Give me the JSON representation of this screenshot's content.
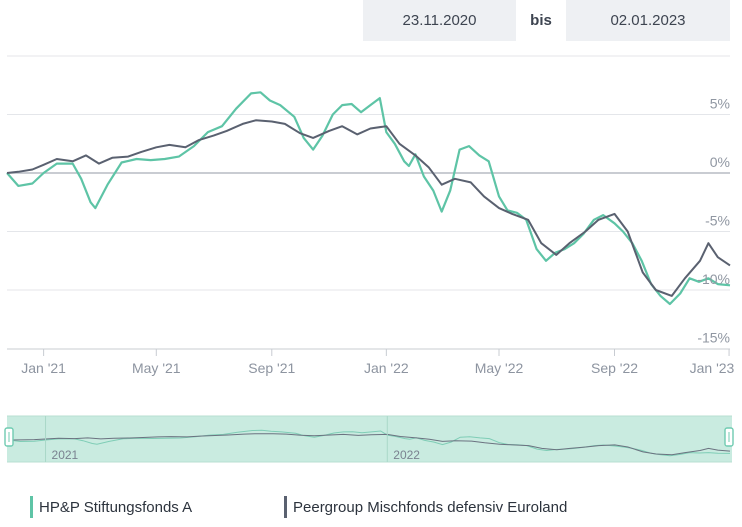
{
  "date_range": {
    "from": "23.11.2020",
    "separator": "bis",
    "to": "02.01.2023"
  },
  "colors": {
    "fund": "#5ec4a6",
    "peer": "#5a6170",
    "navigator_fill": "#c9ebe0",
    "navigator_border": "#6fcbb1"
  },
  "chart_data": {
    "type": "line",
    "title": "",
    "xlabel": "",
    "ylabel": "",
    "x_ticks": [
      "Jan '21",
      "May '21",
      "Sep '21",
      "Jan '22",
      "May '22",
      "Sep '22",
      "Jan '23"
    ],
    "y_ticks": [
      "5%",
      "0%",
      "-5%",
      "-10%",
      "-15%"
    ],
    "ylim": [
      -15,
      10
    ],
    "xlim": [
      "2020-11-23",
      "2023-01-02"
    ],
    "grid": true,
    "legend": "bottom",
    "series": [
      {
        "name": "HP&P Stiftungsfonds A",
        "color": "#5ec4a6",
        "points": [
          [
            "2020-11-23",
            0.0
          ],
          [
            "2020-12-05",
            -1.1
          ],
          [
            "2020-12-20",
            -0.9
          ],
          [
            "2021-01-01",
            0.0
          ],
          [
            "2021-01-15",
            0.8
          ],
          [
            "2021-02-01",
            0.8
          ],
          [
            "2021-02-10",
            -0.5
          ],
          [
            "2021-02-20",
            -2.5
          ],
          [
            "2021-02-25",
            -3.0
          ],
          [
            "2021-03-10",
            -1.0
          ],
          [
            "2021-03-25",
            0.9
          ],
          [
            "2021-04-10",
            1.2
          ],
          [
            "2021-04-25",
            1.1
          ],
          [
            "2021-05-10",
            1.2
          ],
          [
            "2021-05-25",
            1.4
          ],
          [
            "2021-06-10",
            2.3
          ],
          [
            "2021-06-25",
            3.5
          ],
          [
            "2021-07-10",
            4.0
          ],
          [
            "2021-07-25",
            5.5
          ],
          [
            "2021-08-10",
            6.8
          ],
          [
            "2021-08-20",
            6.9
          ],
          [
            "2021-08-30",
            6.2
          ],
          [
            "2021-09-10",
            5.8
          ],
          [
            "2021-09-25",
            4.8
          ],
          [
            "2021-10-05",
            3.0
          ],
          [
            "2021-10-15",
            2.0
          ],
          [
            "2021-10-25",
            3.2
          ],
          [
            "2021-11-05",
            5.0
          ],
          [
            "2021-11-15",
            5.8
          ],
          [
            "2021-11-25",
            5.9
          ],
          [
            "2021-12-05",
            5.2
          ],
          [
            "2021-12-15",
            5.8
          ],
          [
            "2021-12-25",
            6.4
          ],
          [
            "2022-01-01",
            3.5
          ],
          [
            "2022-01-10",
            2.5
          ],
          [
            "2022-01-20",
            1.0
          ],
          [
            "2022-01-25",
            0.6
          ],
          [
            "2022-02-01",
            1.6
          ],
          [
            "2022-02-10",
            -0.3
          ],
          [
            "2022-02-20",
            -1.5
          ],
          [
            "2022-03-01",
            -3.3
          ],
          [
            "2022-03-10",
            -1.5
          ],
          [
            "2022-03-20",
            2.0
          ],
          [
            "2022-03-30",
            2.3
          ],
          [
            "2022-04-10",
            1.5
          ],
          [
            "2022-04-20",
            1.0
          ],
          [
            "2022-05-01",
            -2.0
          ],
          [
            "2022-05-10",
            -3.2
          ],
          [
            "2022-05-20",
            -3.4
          ],
          [
            "2022-05-30",
            -4.0
          ],
          [
            "2022-06-10",
            -6.5
          ],
          [
            "2022-06-20",
            -7.5
          ],
          [
            "2022-06-30",
            -6.8
          ],
          [
            "2022-07-10",
            -6.5
          ],
          [
            "2022-07-20",
            -6.0
          ],
          [
            "2022-07-30",
            -5.2
          ],
          [
            "2022-08-10",
            -4.0
          ],
          [
            "2022-08-20",
            -3.6
          ],
          [
            "2022-09-01",
            -4.3
          ],
          [
            "2022-09-10",
            -5.0
          ],
          [
            "2022-09-20",
            -6.0
          ],
          [
            "2022-09-30",
            -7.5
          ],
          [
            "2022-10-10",
            -9.5
          ],
          [
            "2022-10-20",
            -10.5
          ],
          [
            "2022-10-30",
            -11.2
          ],
          [
            "2022-11-10",
            -10.3
          ],
          [
            "2022-11-20",
            -9.0
          ],
          [
            "2022-11-30",
            -9.3
          ],
          [
            "2022-12-10",
            -9.0
          ],
          [
            "2022-12-20",
            -9.5
          ],
          [
            "2023-01-02",
            -9.6
          ]
        ]
      },
      {
        "name": "Peergroup Mischfonds defensiv Euroland",
        "color": "#5a6170",
        "points": [
          [
            "2020-11-23",
            0.0
          ],
          [
            "2020-12-05",
            0.1
          ],
          [
            "2020-12-20",
            0.3
          ],
          [
            "2021-01-01",
            0.7
          ],
          [
            "2021-01-15",
            1.2
          ],
          [
            "2021-02-01",
            1.0
          ],
          [
            "2021-02-15",
            1.5
          ],
          [
            "2021-03-01",
            0.8
          ],
          [
            "2021-03-15",
            1.3
          ],
          [
            "2021-04-01",
            1.4
          ],
          [
            "2021-04-15",
            1.8
          ],
          [
            "2021-05-01",
            2.2
          ],
          [
            "2021-05-15",
            2.4
          ],
          [
            "2021-06-01",
            2.2
          ],
          [
            "2021-06-15",
            2.8
          ],
          [
            "2021-07-01",
            3.2
          ],
          [
            "2021-07-15",
            3.6
          ],
          [
            "2021-08-01",
            4.2
          ],
          [
            "2021-08-15",
            4.5
          ],
          [
            "2021-09-01",
            4.4
          ],
          [
            "2021-09-15",
            4.2
          ],
          [
            "2021-10-01",
            3.4
          ],
          [
            "2021-10-15",
            3.0
          ],
          [
            "2021-11-01",
            3.6
          ],
          [
            "2021-11-15",
            4.0
          ],
          [
            "2021-12-01",
            3.3
          ],
          [
            "2021-12-15",
            3.8
          ],
          [
            "2022-01-01",
            4.0
          ],
          [
            "2022-01-15",
            2.5
          ],
          [
            "2022-02-01",
            1.5
          ],
          [
            "2022-02-15",
            0.5
          ],
          [
            "2022-03-01",
            -1.0
          ],
          [
            "2022-03-15",
            -0.5
          ],
          [
            "2022-04-01",
            -0.8
          ],
          [
            "2022-04-15",
            -2.0
          ],
          [
            "2022-05-01",
            -3.0
          ],
          [
            "2022-05-15",
            -3.5
          ],
          [
            "2022-06-01",
            -4.0
          ],
          [
            "2022-06-15",
            -6.0
          ],
          [
            "2022-07-01",
            -7.0
          ],
          [
            "2022-07-15",
            -6.0
          ],
          [
            "2022-08-01",
            -5.0
          ],
          [
            "2022-08-15",
            -4.0
          ],
          [
            "2022-09-01",
            -3.5
          ],
          [
            "2022-09-15",
            -5.0
          ],
          [
            "2022-10-01",
            -8.5
          ],
          [
            "2022-10-15",
            -10.0
          ],
          [
            "2022-11-01",
            -10.5
          ],
          [
            "2022-11-15",
            -9.0
          ],
          [
            "2022-12-01",
            -7.5
          ],
          [
            "2022-12-10",
            -6.0
          ],
          [
            "2022-12-20",
            -7.2
          ],
          [
            "2023-01-02",
            -7.9
          ]
        ]
      }
    ],
    "navigator": {
      "labels": [
        "2021",
        "2022"
      ]
    }
  }
}
